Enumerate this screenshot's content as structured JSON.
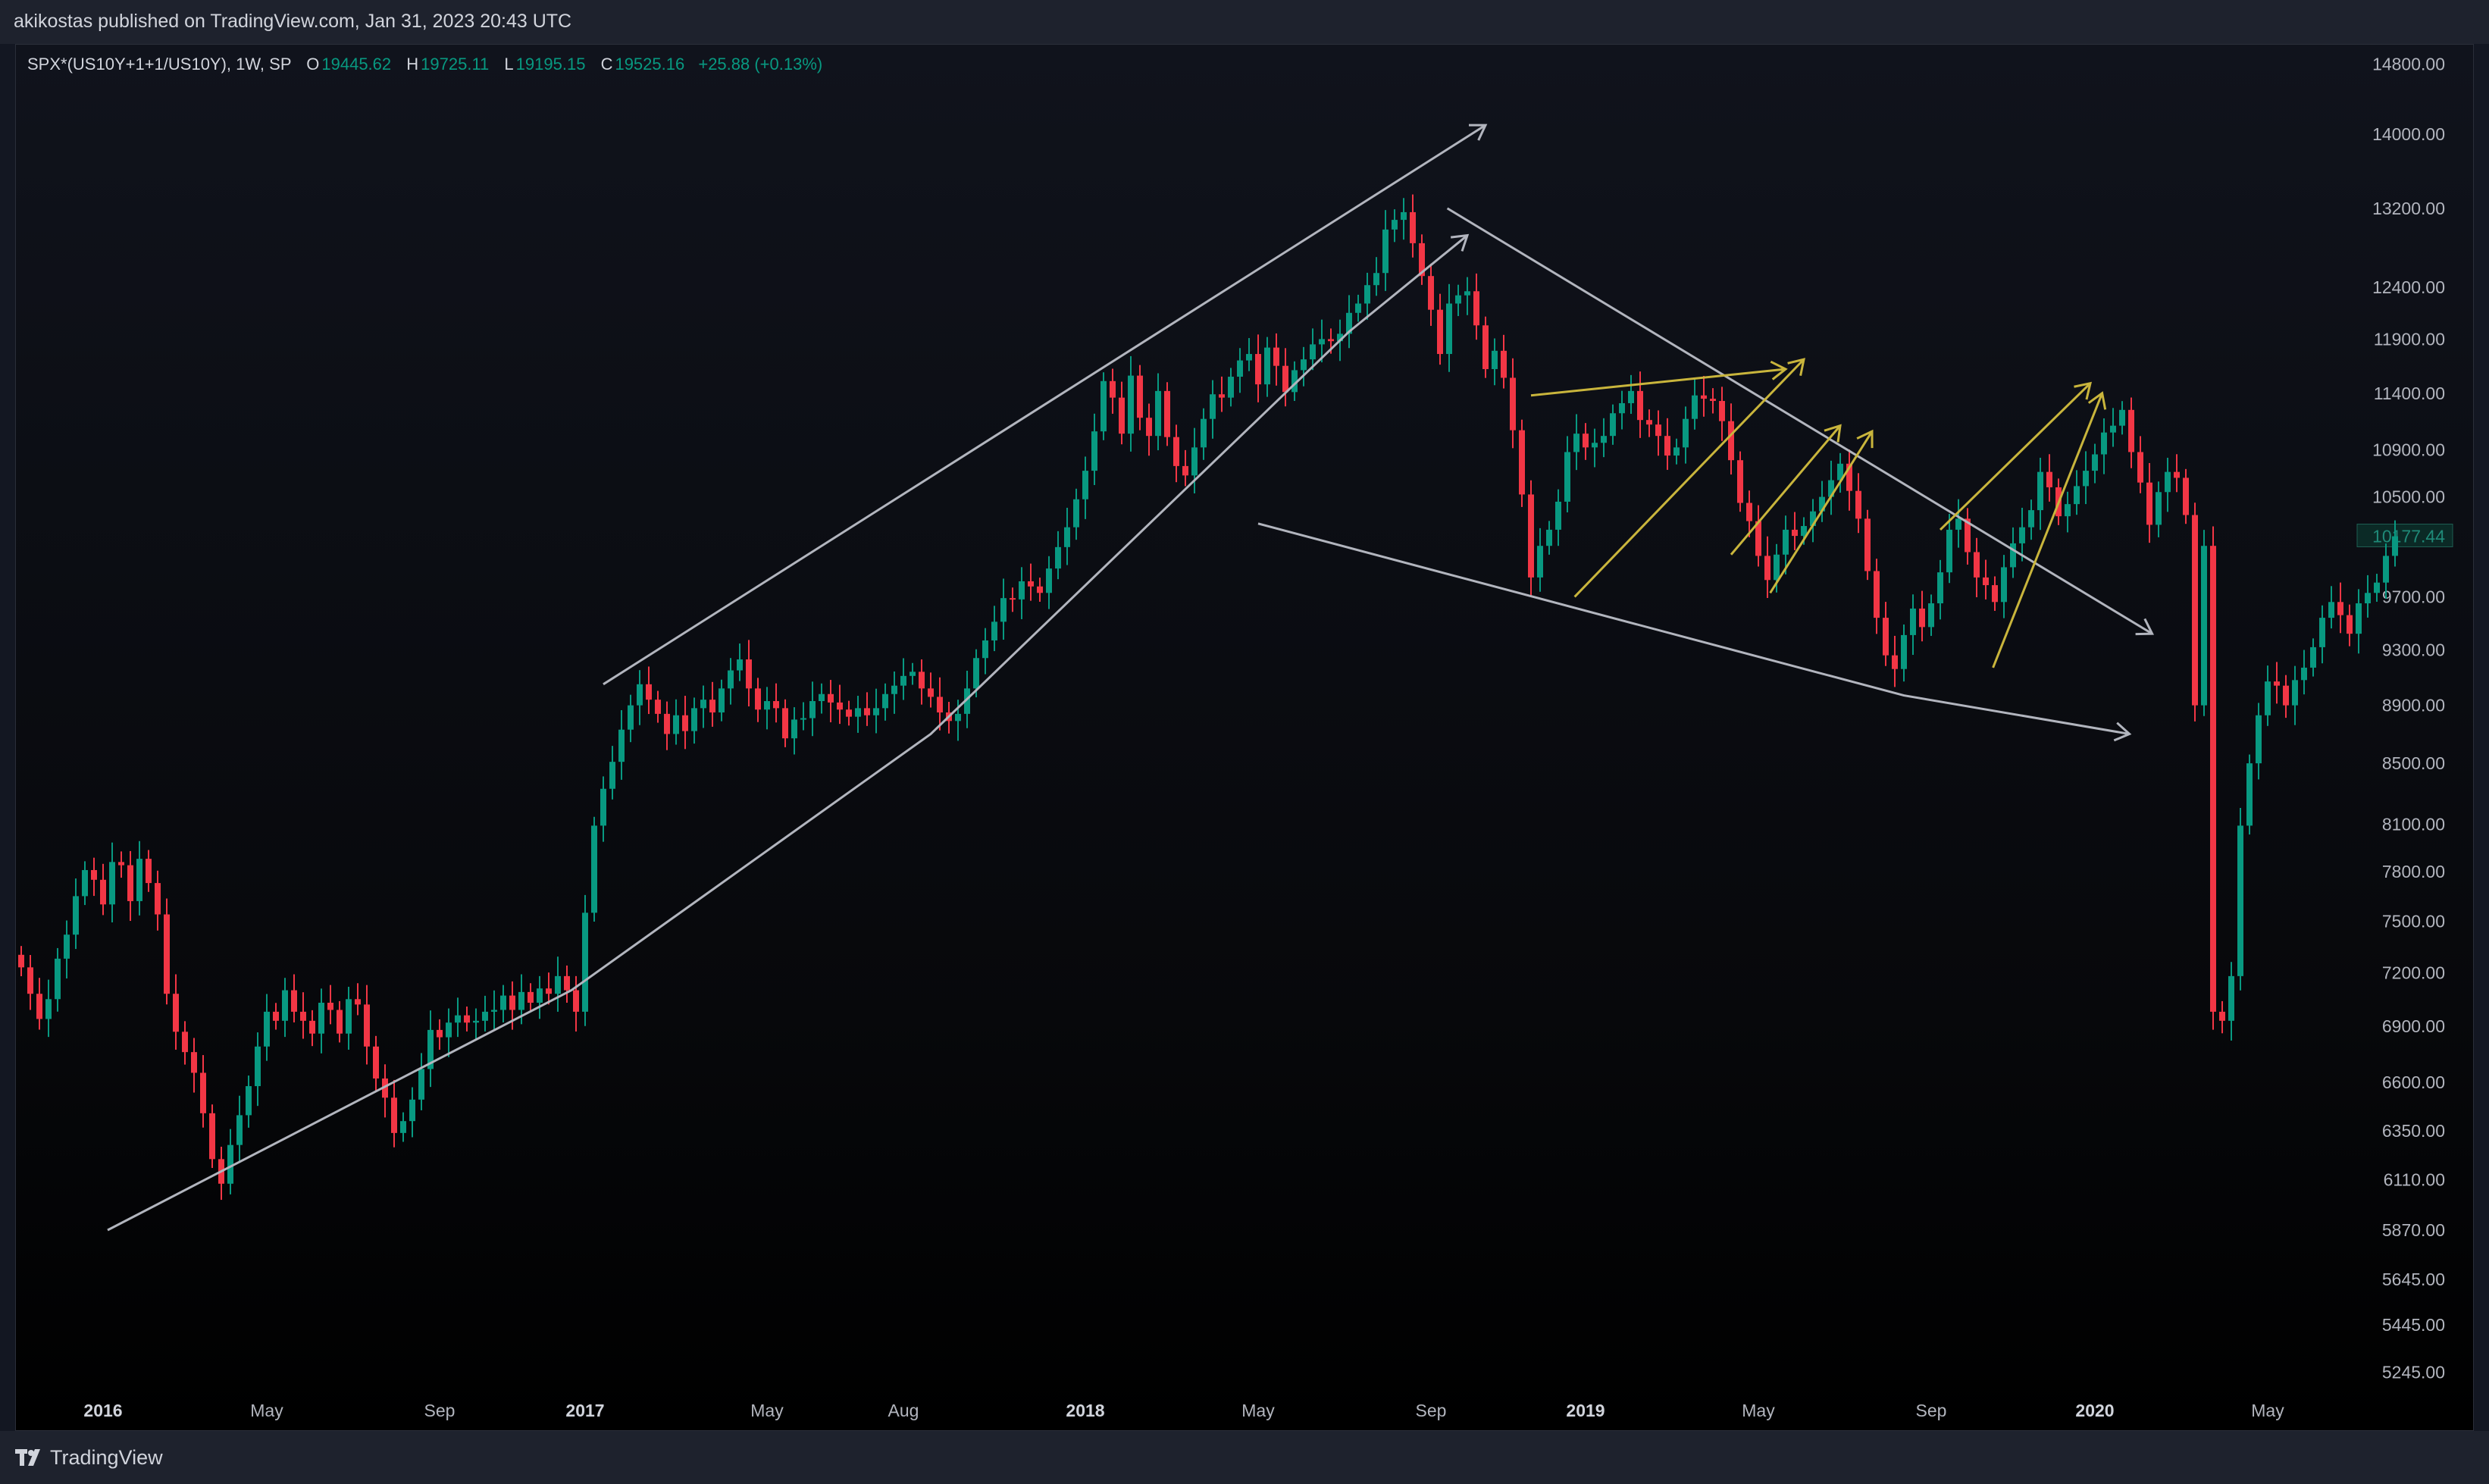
{
  "header": {
    "publish_info": "akikostas published on TradingView.com, Jan 31, 2023 20:43 UTC"
  },
  "legend": {
    "symbol": "SPX*(US10Y+1+1/US10Y), 1W, SP",
    "open_label": "O",
    "open": "19445.62",
    "high_label": "H",
    "high": "19725.11",
    "low_label": "L",
    "low": "19195.15",
    "close_label": "C",
    "close": "19525.16",
    "change": "+25.88 (+0.13%)"
  },
  "footer": {
    "brand": "TradingView"
  },
  "colors": {
    "background": "#131722",
    "up": "#089981",
    "down": "#f23645",
    "drawing_white": "#b2b5be",
    "drawing_yellow": "#c9b53c",
    "axis_text": "#b2b5be"
  },
  "chart_data": {
    "type": "candlestick",
    "title": "SPX*(US10Y+1+1/US10Y), 1W, SP",
    "x_axis_ticks": [
      {
        "label": "2016",
        "bold": true,
        "t": 9
      },
      {
        "label": "May",
        "bold": false,
        "t": 27
      },
      {
        "label": "Sep",
        "bold": false,
        "t": 46
      },
      {
        "label": "2017",
        "bold": true,
        "t": 62
      },
      {
        "label": "May",
        "bold": false,
        "t": 82
      },
      {
        "label": "Aug",
        "bold": false,
        "t": 97
      },
      {
        "label": "2018",
        "bold": true,
        "t": 117
      },
      {
        "label": "May",
        "bold": false,
        "t": 136
      },
      {
        "label": "Sep",
        "bold": false,
        "t": 155
      },
      {
        "label": "2019",
        "bold": true,
        "t": 172
      },
      {
        "label": "May",
        "bold": false,
        "t": 191
      },
      {
        "label": "Sep",
        "bold": false,
        "t": 210
      },
      {
        "label": "2020",
        "bold": true,
        "t": 228
      },
      {
        "label": "May",
        "bold": false,
        "t": 247
      }
    ],
    "y_axis_ticks": [
      14800,
      14000,
      13200,
      12400,
      11900,
      11400,
      10900,
      10500,
      9700,
      9300,
      8900,
      8500,
      8100,
      7800,
      7500,
      7200,
      6900,
      6600,
      6350,
      6110,
      5870,
      5645,
      5445,
      5245
    ],
    "y_axis_tick_labels": [
      "14800.00",
      "14000.00",
      "13200.00",
      "12400.00",
      "11900.00",
      "11400.00",
      "10900.00",
      "10500.00",
      "9700.00",
      "9300.00",
      "8900.00",
      "8500.00",
      "8100.00",
      "7800.00",
      "7500.00",
      "7200.00",
      "6900.00",
      "6600.00",
      "6350.00",
      "6110.00",
      "5870.00",
      "5645.00",
      "5445.00",
      "5245.00"
    ],
    "last_price_label": "10177.44",
    "y_scale": "log",
    "weekly_closes": [
      7230,
      7080,
      6940,
      7050,
      7280,
      7420,
      7650,
      7810,
      7750,
      7600,
      7860,
      7840,
      7620,
      7880,
      7730,
      7540,
      7080,
      6870,
      6760,
      6650,
      6440,
      6210,
      6090,
      6280,
      6430,
      6580,
      6790,
      6980,
      6930,
      7100,
      6980,
      6930,
      6860,
      7030,
      6990,
      6860,
      7050,
      7020,
      6790,
      6620,
      6520,
      6340,
      6400,
      6510,
      6670,
      6880,
      6840,
      6920,
      6960,
      6920,
      6930,
      6980,
      6990,
      7070,
      6990,
      7090,
      7030,
      7110,
      7080,
      7180,
      7100,
      6980,
      7550,
      8090,
      8330,
      8510,
      8730,
      8900,
      9050,
      8940,
      8840,
      8700,
      8830,
      8720,
      8880,
      8940,
      8850,
      9020,
      9150,
      9230,
      9020,
      8870,
      8930,
      8880,
      8670,
      8800,
      8810,
      8930,
      8980,
      8920,
      8870,
      8820,
      8880,
      8830,
      8880,
      8980,
      9040,
      9110,
      9140,
      9020,
      8960,
      8850,
      8790,
      8840,
      9020,
      9240,
      9370,
      9510,
      9690,
      9680,
      9820,
      9780,
      9730,
      9920,
      10090,
      10250,
      10480,
      10720,
      11060,
      11510,
      11360,
      11040,
      11560,
      11180,
      11020,
      11420,
      11010,
      10760,
      10680,
      10920,
      11170,
      11390,
      11360,
      11550,
      11700,
      11760,
      11480,
      11820,
      11650,
      11410,
      11610,
      11710,
      11850,
      11900,
      11880,
      11950,
      12150,
      12240,
      12420,
      12540,
      12980,
      13080,
      13160,
      12840,
      12510,
      12180,
      11760,
      12240,
      12320,
      12360,
      12030,
      11620,
      11790,
      11540,
      11070,
      10520,
      9850,
      10100,
      10230,
      10460,
      10880,
      11040,
      10920,
      10960,
      11020,
      11220,
      11310,
      11420,
      11160,
      11120,
      11020,
      10850,
      10920,
      11170,
      11380,
      11350,
      11330,
      11150,
      10810,
      10450,
      10300,
      10020,
      9830,
      10030,
      10230,
      10180,
      10260,
      10380,
      10500,
      10640,
      10780,
      10550,
      10320,
      9900,
      9540,
      9260,
      9160,
      9410,
      9610,
      9470,
      9650,
      9890,
      10230,
      10320,
      10050,
      9850,
      9790,
      9660,
      9930,
      10120,
      10250,
      10390,
      10710,
      10580,
      10340,
      10440,
      10590,
      10720,
      10860,
      11050,
      11110,
      11250,
      10880,
      10620,
      10270,
      10540,
      10710,
      10660,
      10350,
      8900,
      10100,
      6980,
      6930,
      7180,
      8090,
      8500,
      8830,
      9070,
      9040,
      8900,
      9080,
      9170,
      9320,
      9540,
      9660,
      9560,
      9420,
      9650,
      9730,
      9810,
      10020,
      10177
    ]
  }
}
